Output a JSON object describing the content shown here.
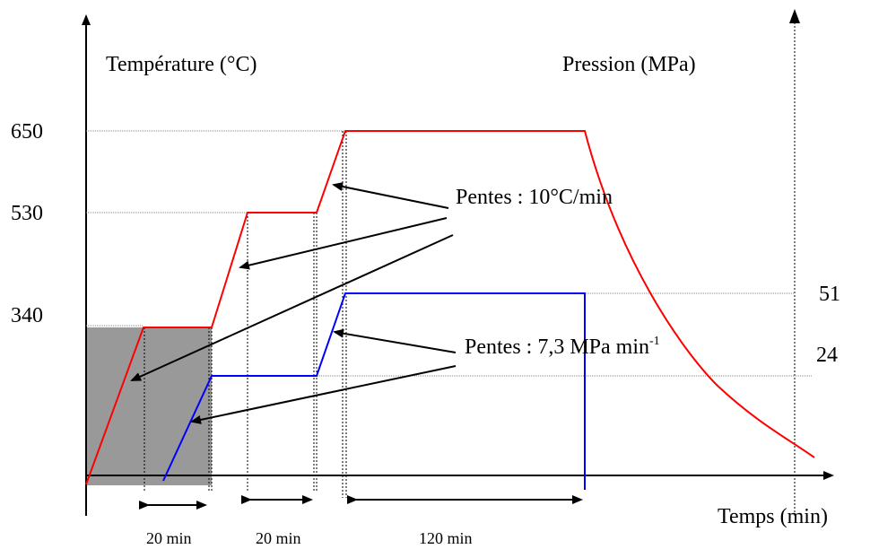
{
  "labels": {
    "temperature_axis": "Température (°C)",
    "pressure_axis": "Pression (MPa)",
    "time_axis": "Temps (min)"
  },
  "temperature_ticks": [
    "650",
    "530",
    "340"
  ],
  "pressure_ticks": [
    "51",
    "24"
  ],
  "durations": [
    "20 min",
    "20 min",
    "120 min"
  ],
  "annotations": {
    "temp_slope": "Pentes : 10°C/min",
    "pressure_slope": "Pentes : 7,3 MPa min",
    "pressure_slope_exponent": "-1"
  },
  "colors": {
    "temperature": "#ff0000",
    "pressure": "#0000ff",
    "shaded_zone": "#999999",
    "axes": "#000000"
  }
}
